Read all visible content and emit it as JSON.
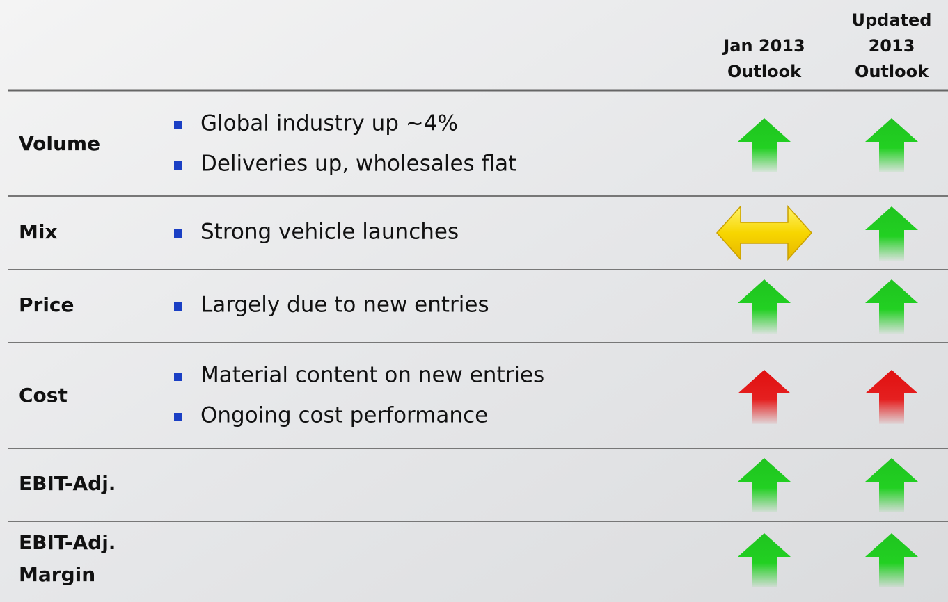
{
  "table": {
    "headers": [
      [
        "Jan 2013",
        "Outlook"
      ],
      [
        "Updated",
        "2013",
        "Outlook"
      ]
    ],
    "rows": [
      {
        "label": [
          "Volume"
        ],
        "bullets": [
          "Global industry up ~4%",
          "Deliveries up, wholesales flat"
        ],
        "outlook": [
          {
            "direction": "up",
            "color": "green"
          },
          {
            "direction": "up",
            "color": "green"
          }
        ]
      },
      {
        "label": [
          "Mix"
        ],
        "bullets": [
          "Strong vehicle launches"
        ],
        "outlook": [
          {
            "direction": "both",
            "color": "yellow"
          },
          {
            "direction": "up",
            "color": "green"
          }
        ]
      },
      {
        "label": [
          "Price"
        ],
        "bullets": [
          "Largely due to new entries"
        ],
        "outlook": [
          {
            "direction": "up",
            "color": "green"
          },
          {
            "direction": "up",
            "color": "green"
          }
        ]
      },
      {
        "label": [
          "Cost"
        ],
        "bullets": [
          "Material content on new entries",
          "Ongoing cost performance"
        ],
        "outlook": [
          {
            "direction": "up",
            "color": "red"
          },
          {
            "direction": "up",
            "color": "red"
          }
        ]
      },
      {
        "label": [
          "EBIT-Adj."
        ],
        "bullets": [],
        "outlook": [
          {
            "direction": "up",
            "color": "green"
          },
          {
            "direction": "up",
            "color": "green"
          }
        ]
      },
      {
        "label": [
          "EBIT-Adj.",
          "Margin"
        ],
        "bullets": [],
        "outlook": [
          {
            "direction": "up",
            "color": "green"
          },
          {
            "direction": "up",
            "color": "green"
          }
        ]
      }
    ]
  }
}
